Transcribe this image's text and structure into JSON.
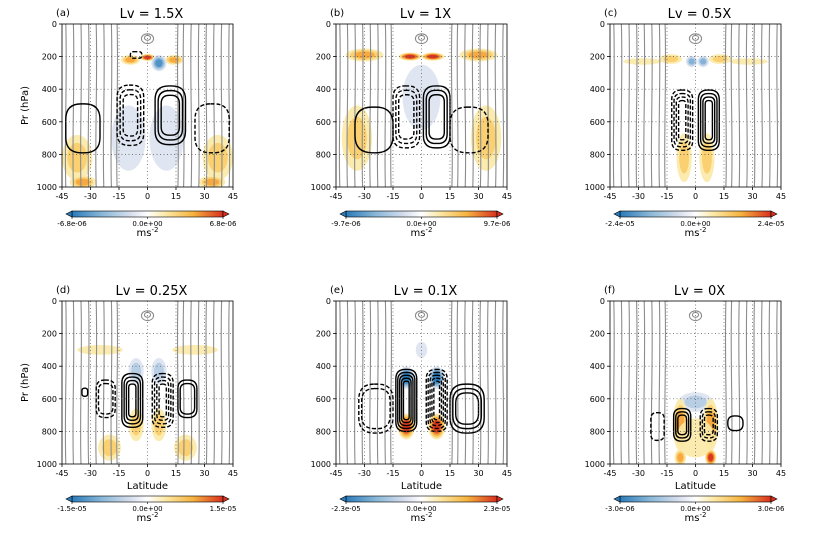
{
  "chart_data": [
    {
      "type": "contour",
      "label": "(a)",
      "title": "Lv = 1.5X",
      "ylabel": "Pr (hPa)",
      "xlabel": "",
      "xlim": [
        -45,
        45
      ],
      "ylim": [
        1000,
        0
      ],
      "xticks": [
        "-45",
        "-30",
        "-15",
        "0",
        "15",
        "30",
        "45"
      ],
      "yticks": [
        "0",
        "200",
        "400",
        "600",
        "800",
        "1000"
      ],
      "colorbar": {
        "min_label": "-6.8e-06",
        "mid_label": "0.0e+00",
        "max_label": "6.8e-06",
        "unit": "ms",
        "unit_exp": "-2"
      },
      "features": [
        {
          "kind": "fill",
          "sign": 1,
          "lat": -37,
          "p": 820,
          "w": 8,
          "h": 140,
          "strength": 0.45
        },
        {
          "kind": "fill",
          "sign": 1,
          "lat": 37,
          "p": 820,
          "w": 8,
          "h": 140,
          "strength": 0.45
        },
        {
          "kind": "fill",
          "sign": 1,
          "lat": -34,
          "p": 970,
          "w": 7,
          "h": 40,
          "strength": 0.6
        },
        {
          "kind": "fill",
          "sign": 1,
          "lat": 34,
          "p": 970,
          "w": 7,
          "h": 40,
          "strength": 0.6
        },
        {
          "kind": "fill",
          "sign": 1,
          "lat": 0,
          "p": 205,
          "w": 4,
          "h": 22,
          "strength": 0.95
        },
        {
          "kind": "fill",
          "sign": 1,
          "lat": -9,
          "p": 220,
          "w": 5,
          "h": 30,
          "strength": 0.6
        },
        {
          "kind": "fill",
          "sign": 1,
          "lat": 14,
          "p": 220,
          "w": 5,
          "h": 30,
          "strength": 0.6
        },
        {
          "kind": "fill",
          "sign": -1,
          "lat": 6,
          "p": 240,
          "w": 4,
          "h": 50,
          "strength": 0.75
        },
        {
          "kind": "fill",
          "sign": -1,
          "lat": 10,
          "p": 700,
          "w": 9,
          "h": 200,
          "strength": 0.2
        },
        {
          "kind": "fill",
          "sign": -1,
          "lat": -10,
          "p": 700,
          "w": 9,
          "h": 200,
          "strength": 0.2
        },
        {
          "kind": "cell",
          "sign": 1,
          "lat": 12,
          "p": 560,
          "w": 8,
          "h": 360,
          "rings": 3,
          "gap": 1.6
        },
        {
          "kind": "cell",
          "sign": -1,
          "lat": -9,
          "p": 560,
          "w": 7,
          "h": 370,
          "rings": 3,
          "gap": 1.6
        },
        {
          "kind": "cell",
          "sign": 1,
          "lat": -34,
          "p": 640,
          "w": 9,
          "h": 300,
          "rings": 1,
          "gap": 0
        },
        {
          "kind": "cell",
          "sign": -1,
          "lat": 34,
          "p": 640,
          "w": 9,
          "h": 300,
          "rings": 1,
          "gap": 0
        },
        {
          "kind": "cell",
          "sign": -1,
          "lat": -6,
          "p": 190,
          "w": 3,
          "h": 40,
          "rings": 1,
          "gap": 0
        }
      ]
    },
    {
      "type": "contour",
      "label": "(b)",
      "title": "Lv = 1X",
      "ylabel": "",
      "xlabel": "",
      "xlim": [
        -45,
        45
      ],
      "ylim": [
        1000,
        0
      ],
      "xticks": [
        "-45",
        "-30",
        "-15",
        "0",
        "15",
        "30",
        "45"
      ],
      "yticks": [
        "0",
        "200",
        "400",
        "600",
        "800",
        "1000"
      ],
      "colorbar": {
        "min_label": "-9.7e-06",
        "mid_label": "0.0e+00",
        "max_label": "9.7e-06",
        "unit": "ms",
        "unit_exp": "-2"
      },
      "features": [
        {
          "kind": "fill",
          "sign": 1,
          "lat": -6,
          "p": 200,
          "w": 6,
          "h": 25,
          "strength": 0.95
        },
        {
          "kind": "fill",
          "sign": 1,
          "lat": 6,
          "p": 200,
          "w": 6,
          "h": 25,
          "strength": 0.95
        },
        {
          "kind": "fill",
          "sign": 1,
          "lat": -30,
          "p": 190,
          "w": 10,
          "h": 40,
          "strength": 0.55
        },
        {
          "kind": "fill",
          "sign": 1,
          "lat": 30,
          "p": 190,
          "w": 10,
          "h": 40,
          "strength": 0.55
        },
        {
          "kind": "fill",
          "sign": 1,
          "lat": -34,
          "p": 700,
          "w": 8,
          "h": 200,
          "strength": 0.35
        },
        {
          "kind": "fill",
          "sign": 1,
          "lat": 34,
          "p": 700,
          "w": 8,
          "h": 200,
          "strength": 0.35
        },
        {
          "kind": "fill",
          "sign": -1,
          "lat": 0,
          "p": 450,
          "w": 10,
          "h": 200,
          "strength": 0.12
        },
        {
          "kind": "cell",
          "sign": 1,
          "lat": 8,
          "p": 570,
          "w": 7,
          "h": 380,
          "rings": 3,
          "gap": 1.5
        },
        {
          "kind": "cell",
          "sign": -1,
          "lat": -8,
          "p": 570,
          "w": 7,
          "h": 380,
          "rings": 3,
          "gap": 1.5
        },
        {
          "kind": "cell",
          "sign": 1,
          "lat": -25,
          "p": 650,
          "w": 10,
          "h": 280,
          "rings": 1,
          "gap": 0
        },
        {
          "kind": "cell",
          "sign": -1,
          "lat": 25,
          "p": 650,
          "w": 10,
          "h": 280,
          "rings": 1,
          "gap": 0
        }
      ]
    },
    {
      "type": "contour",
      "label": "(c)",
      "title": "Lv = 0.5X",
      "ylabel": "",
      "xlabel": "",
      "xlim": [
        -45,
        45
      ],
      "ylim": [
        1000,
        0
      ],
      "xticks": [
        "-45",
        "-30",
        "-15",
        "0",
        "15",
        "30",
        "45"
      ],
      "yticks": [
        "0",
        "200",
        "400",
        "600",
        "800",
        "1000"
      ],
      "colorbar": {
        "min_label": "-2.4e-05",
        "mid_label": "0.0e+00",
        "max_label": "2.4e-05",
        "unit": "ms",
        "unit_exp": "-2"
      },
      "features": [
        {
          "kind": "fill",
          "sign": 1,
          "lat": -13,
          "p": 215,
          "w": 6,
          "h": 30,
          "strength": 0.45
        },
        {
          "kind": "fill",
          "sign": 1,
          "lat": 13,
          "p": 215,
          "w": 6,
          "h": 30,
          "strength": 0.45
        },
        {
          "kind": "fill",
          "sign": -1,
          "lat": -2,
          "p": 230,
          "w": 3,
          "h": 35,
          "strength": 0.55
        },
        {
          "kind": "fill",
          "sign": -1,
          "lat": 4,
          "p": 230,
          "w": 3,
          "h": 35,
          "strength": 0.55
        },
        {
          "kind": "fill",
          "sign": 1,
          "lat": -6,
          "p": 820,
          "w": 4,
          "h": 150,
          "strength": 0.4
        },
        {
          "kind": "fill",
          "sign": 1,
          "lat": 6,
          "p": 820,
          "w": 4,
          "h": 150,
          "strength": 0.4
        },
        {
          "kind": "fill",
          "sign": 1,
          "lat": -28,
          "p": 230,
          "w": 10,
          "h": 20,
          "strength": 0.25
        },
        {
          "kind": "fill",
          "sign": 1,
          "lat": 28,
          "p": 230,
          "w": 10,
          "h": 20,
          "strength": 0.25
        },
        {
          "kind": "cell",
          "sign": 1,
          "lat": 7,
          "p": 590,
          "w": 5.5,
          "h": 370,
          "rings": 4,
          "gap": 1.2
        },
        {
          "kind": "cell",
          "sign": -1,
          "lat": -7,
          "p": 590,
          "w": 5.5,
          "h": 370,
          "rings": 4,
          "gap": 1.2
        }
      ]
    },
    {
      "type": "contour",
      "label": "(d)",
      "title": "Lv = 0.25X",
      "ylabel": "Pr (hPa)",
      "xlabel": "Latitude",
      "xlim": [
        -45,
        45
      ],
      "ylim": [
        1000,
        0
      ],
      "xticks": [
        "-45",
        "-30",
        "-15",
        "0",
        "15",
        "30",
        "45"
      ],
      "yticks": [
        "0",
        "200",
        "400",
        "600",
        "800",
        "1000"
      ],
      "colorbar": {
        "min_label": "-1.5e-05",
        "mid_label": "0.0e+00",
        "max_label": "1.5e-05",
        "unit": "ms",
        "unit_exp": "-2"
      },
      "features": [
        {
          "kind": "fill",
          "sign": 1,
          "lat": -25,
          "p": 300,
          "w": 12,
          "h": 30,
          "strength": 0.25
        },
        {
          "kind": "fill",
          "sign": 1,
          "lat": 25,
          "p": 300,
          "w": 12,
          "h": 30,
          "strength": 0.25
        },
        {
          "kind": "fill",
          "sign": -1,
          "lat": -6,
          "p": 430,
          "w": 4,
          "h": 80,
          "strength": 0.45
        },
        {
          "kind": "fill",
          "sign": -1,
          "lat": 6,
          "p": 430,
          "w": 4,
          "h": 80,
          "strength": 0.45
        },
        {
          "kind": "fill",
          "sign": 1,
          "lat": -6,
          "p": 760,
          "w": 4,
          "h": 100,
          "strength": 0.45
        },
        {
          "kind": "fill",
          "sign": 1,
          "lat": 6,
          "p": 760,
          "w": 4,
          "h": 100,
          "strength": 0.45
        },
        {
          "kind": "fill",
          "sign": 1,
          "lat": -20,
          "p": 900,
          "w": 6,
          "h": 80,
          "strength": 0.3
        },
        {
          "kind": "fill",
          "sign": 1,
          "lat": 20,
          "p": 900,
          "w": 6,
          "h": 80,
          "strength": 0.3
        },
        {
          "kind": "cell",
          "sign": 1,
          "lat": -8,
          "p": 610,
          "w": 5.5,
          "h": 330,
          "rings": 4,
          "gap": 1.2
        },
        {
          "kind": "cell",
          "sign": -1,
          "lat": 8,
          "p": 610,
          "w": 5.5,
          "h": 330,
          "rings": 4,
          "gap": 1.2
        },
        {
          "kind": "cell",
          "sign": -1,
          "lat": -22,
          "p": 600,
          "w": 5,
          "h": 230,
          "rings": 2,
          "gap": 1.2
        },
        {
          "kind": "cell",
          "sign": 1,
          "lat": 21,
          "p": 600,
          "w": 5,
          "h": 230,
          "rings": 2,
          "gap": 1.2
        },
        {
          "kind": "cell",
          "sign": 1,
          "lat": -33,
          "p": 560,
          "w": 1.5,
          "h": 50,
          "rings": 1,
          "gap": 0
        }
      ]
    },
    {
      "type": "contour",
      "label": "(e)",
      "title": "Lv = 0.1X",
      "ylabel": "",
      "xlabel": "Latitude",
      "xlim": [
        -45,
        45
      ],
      "ylim": [
        1000,
        0
      ],
      "xticks": [
        "-45",
        "-30",
        "-15",
        "0",
        "15",
        "30",
        "45"
      ],
      "yticks": [
        "0",
        "200",
        "400",
        "600",
        "800",
        "1000"
      ],
      "colorbar": {
        "min_label": "-2.3e-05",
        "mid_label": "0.0e+00",
        "max_label": "2.3e-05",
        "unit": "ms",
        "unit_exp": "-2"
      },
      "features": [
        {
          "kind": "fill",
          "sign": -1,
          "lat": -8,
          "p": 470,
          "w": 4,
          "h": 70,
          "strength": 0.9
        },
        {
          "kind": "fill",
          "sign": -1,
          "lat": 8,
          "p": 470,
          "w": 4,
          "h": 70,
          "strength": 0.9
        },
        {
          "kind": "fill",
          "sign": 1,
          "lat": -8,
          "p": 770,
          "w": 4.5,
          "h": 80,
          "strength": 0.95
        },
        {
          "kind": "fill",
          "sign": 1,
          "lat": 8,
          "p": 770,
          "w": 4.5,
          "h": 80,
          "strength": 0.95
        },
        {
          "kind": "fill",
          "sign": -1,
          "lat": 0,
          "p": 300,
          "w": 3,
          "h": 50,
          "strength": 0.25
        },
        {
          "kind": "cell",
          "sign": 1,
          "lat": -8,
          "p": 610,
          "w": 5.5,
          "h": 380,
          "rings": 5,
          "gap": 1.0
        },
        {
          "kind": "cell",
          "sign": -1,
          "lat": 8,
          "p": 610,
          "w": 5.5,
          "h": 380,
          "rings": 5,
          "gap": 1.0
        },
        {
          "kind": "cell",
          "sign": -1,
          "lat": -24,
          "p": 660,
          "w": 9,
          "h": 300,
          "rings": 2,
          "gap": 1.5
        },
        {
          "kind": "cell",
          "sign": 1,
          "lat": 24,
          "p": 660,
          "w": 9,
          "h": 300,
          "rings": 3,
          "gap": 1.5
        }
      ]
    },
    {
      "type": "contour",
      "label": "(f)",
      "title": "Lv = 0X",
      "ylabel": "",
      "xlabel": "Latitude",
      "xlim": [
        -45,
        45
      ],
      "ylim": [
        1000,
        0
      ],
      "xticks": [
        "-45",
        "-30",
        "-15",
        "0",
        "15",
        "30",
        "45"
      ],
      "yticks": [
        "0",
        "200",
        "400",
        "600",
        "800",
        "1000"
      ],
      "colorbar": {
        "min_label": "-3.0e-06",
        "mid_label": "0.0e+00",
        "max_label": "3.0e-06",
        "unit": "ms",
        "unit_exp": "-2"
      },
      "features": [
        {
          "kind": "fill",
          "sign": -1,
          "lat": 0,
          "p": 620,
          "w": 9,
          "h": 60,
          "strength": 0.35
        },
        {
          "kind": "fill",
          "sign": 1,
          "lat": -8,
          "p": 760,
          "w": 4,
          "h": 160,
          "strength": 0.6
        },
        {
          "kind": "fill",
          "sign": 1,
          "lat": 8,
          "p": 760,
          "w": 4,
          "h": 160,
          "strength": 0.6
        },
        {
          "kind": "fill",
          "sign": 1,
          "lat": 8,
          "p": 960,
          "w": 3,
          "h": 50,
          "strength": 0.9
        },
        {
          "kind": "fill",
          "sign": 1,
          "lat": -8,
          "p": 960,
          "w": 3,
          "h": 50,
          "strength": 0.55
        },
        {
          "kind": "fill",
          "sign": 1,
          "lat": 0,
          "p": 840,
          "w": 10,
          "h": 120,
          "strength": 0.2
        },
        {
          "kind": "cell",
          "sign": 1,
          "lat": -7,
          "p": 760,
          "w": 4.5,
          "h": 200,
          "rings": 3,
          "gap": 1.1
        },
        {
          "kind": "cell",
          "sign": -1,
          "lat": 7,
          "p": 760,
          "w": 4.5,
          "h": 200,
          "rings": 3,
          "gap": 1.1
        },
        {
          "kind": "cell",
          "sign": -1,
          "lat": -20,
          "p": 770,
          "w": 3.5,
          "h": 170,
          "rings": 1,
          "gap": 0
        },
        {
          "kind": "cell",
          "sign": 1,
          "lat": 21,
          "p": 750,
          "w": 4,
          "h": 90,
          "rings": 1,
          "gap": 0
        }
      ]
    }
  ]
}
